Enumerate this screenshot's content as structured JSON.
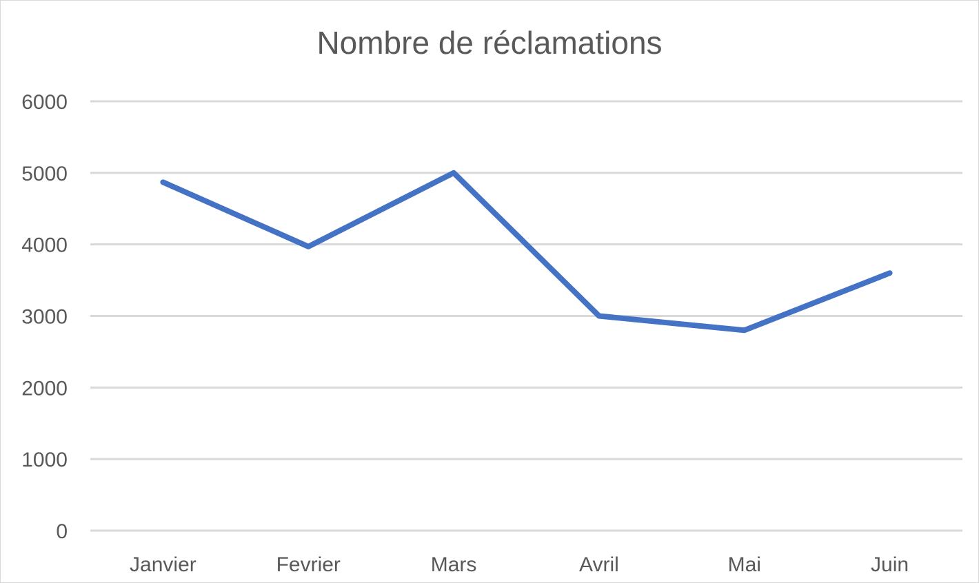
{
  "chart_data": {
    "type": "line",
    "title": "Nombre de réclamations",
    "categories": [
      "Janvier",
      "Fevrier",
      "Mars",
      "Avril",
      "Mai",
      "Juin"
    ],
    "series": [
      {
        "values": [
          4870,
          3970,
          5000,
          3000,
          2800,
          3600
        ],
        "color": "#4472c4"
      }
    ],
    "yticks": [
      0,
      1000,
      2000,
      3000,
      4000,
      5000,
      6000
    ],
    "ylim": [
      0,
      6000
    ],
    "grid": true,
    "legend": "none"
  }
}
